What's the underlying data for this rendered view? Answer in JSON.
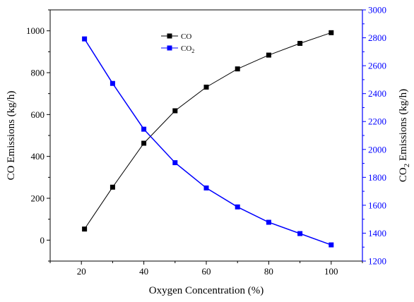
{
  "chart_data": {
    "type": "line",
    "title": "",
    "xlabel": "Oxygen Concentration (%)",
    "x": [
      21,
      30,
      40,
      50,
      60,
      70,
      80,
      90,
      100
    ],
    "xlim": [
      10,
      110
    ],
    "xticks": [
      20,
      40,
      60,
      80,
      100
    ],
    "left_axis": {
      "label": "CO Emissions (kg/h)",
      "ylim": [
        -100,
        1100
      ],
      "ticks": [
        0,
        200,
        400,
        600,
        800,
        1000
      ],
      "color": "#000000"
    },
    "right_axis": {
      "label_prefix": "CO",
      "label_sub": "2",
      "label_suffix": " Emissions (kg/h)",
      "ylim": [
        1200,
        3000
      ],
      "ticks": [
        1200,
        1400,
        1600,
        1800,
        2000,
        2200,
        2400,
        2600,
        2800,
        3000
      ],
      "color": "#0000ff"
    },
    "series": [
      {
        "name": "CO",
        "axis": "left",
        "color": "#000000",
        "values": [
          53,
          253,
          463,
          618,
          731,
          818,
          884,
          940,
          991
        ]
      },
      {
        "name_prefix": "CO",
        "name_sub": "2",
        "axis": "right",
        "color": "#0000ff",
        "values": [
          2792,
          2473,
          2145,
          1905,
          1724,
          1588,
          1478,
          1397,
          1316
        ]
      }
    ],
    "legend_position": "top-center",
    "grid": false
  }
}
